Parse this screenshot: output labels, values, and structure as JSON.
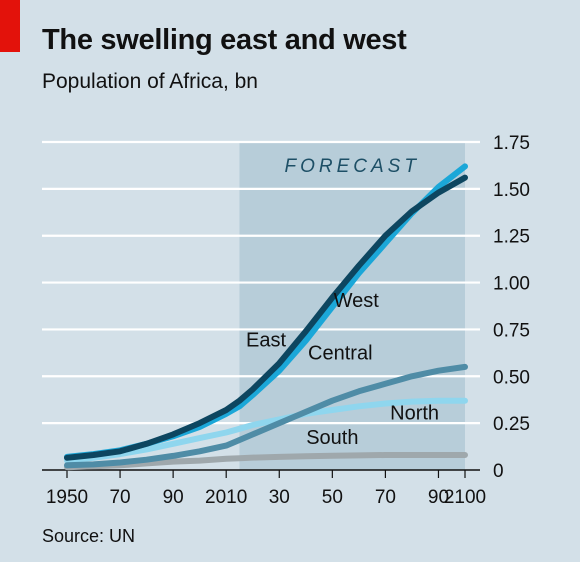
{
  "header": {
    "title": "The swelling east and west",
    "subtitle": "Population of Africa, bn"
  },
  "footer": {
    "source": "Source: UN"
  },
  "chart_data": {
    "type": "line",
    "title": "The swelling east and west",
    "subtitle": "Population of Africa, bn",
    "xlim": [
      1950,
      2100
    ],
    "ylim": [
      0,
      1.75
    ],
    "y_axis_side": "right",
    "grid": true,
    "x_ticks": [
      1950,
      1970,
      1990,
      2010,
      2030,
      2050,
      2070,
      2090,
      2100
    ],
    "x_tick_labels": [
      "1950",
      "70",
      "90",
      "2010",
      "30",
      "50",
      "70",
      "90",
      "2100"
    ],
    "y_ticks": [
      0,
      0.25,
      0.5,
      0.75,
      1.0,
      1.25,
      1.5,
      1.75
    ],
    "y_tick_labels": [
      "0",
      "0.25",
      "0.50",
      "0.75",
      "1.00",
      "1.25",
      "1.50",
      "1.75"
    ],
    "forecast": {
      "label": "FORECAST",
      "start": 2015,
      "end": 2100,
      "color": "#b7cdd9"
    },
    "x": [
      1950,
      1960,
      1970,
      1980,
      1990,
      2000,
      2010,
      2015,
      2020,
      2030,
      2040,
      2050,
      2060,
      2070,
      2080,
      2090,
      2100
    ],
    "series": [
      {
        "name": "East",
        "color": "#0d4660",
        "label_year": 2025,
        "label_value": 0.66,
        "values": [
          0.065,
          0.08,
          0.1,
          0.14,
          0.19,
          0.25,
          0.32,
          0.37,
          0.43,
          0.57,
          0.74,
          0.92,
          1.09,
          1.25,
          1.38,
          1.48,
          1.56
        ]
      },
      {
        "name": "West",
        "color": "#1ba7d8",
        "label_year": 2059,
        "label_value": 0.87,
        "values": [
          0.07,
          0.085,
          0.105,
          0.14,
          0.18,
          0.23,
          0.3,
          0.34,
          0.4,
          0.53,
          0.69,
          0.87,
          1.05,
          1.21,
          1.37,
          1.51,
          1.62
        ]
      },
      {
        "name": "Central",
        "color": "#4f8ca6",
        "label_year": 2053,
        "label_value": 0.59,
        "values": [
          0.025,
          0.03,
          0.04,
          0.055,
          0.075,
          0.1,
          0.13,
          0.16,
          0.19,
          0.25,
          0.31,
          0.37,
          0.42,
          0.46,
          0.5,
          0.53,
          0.55
        ]
      },
      {
        "name": "North",
        "color": "#8fd6ee",
        "label_year": 2081,
        "label_value": 0.27,
        "values": [
          0.05,
          0.065,
          0.085,
          0.11,
          0.14,
          0.17,
          0.2,
          0.22,
          0.24,
          0.27,
          0.3,
          0.32,
          0.34,
          0.355,
          0.365,
          0.37,
          0.37
        ]
      },
      {
        "name": "South",
        "color": "#9fa8ac",
        "label_year": 2050,
        "label_value": 0.14,
        "values": [
          0.015,
          0.02,
          0.025,
          0.035,
          0.045,
          0.05,
          0.06,
          0.063,
          0.066,
          0.07,
          0.073,
          0.076,
          0.078,
          0.08,
          0.08,
          0.08,
          0.08
        ]
      }
    ]
  }
}
